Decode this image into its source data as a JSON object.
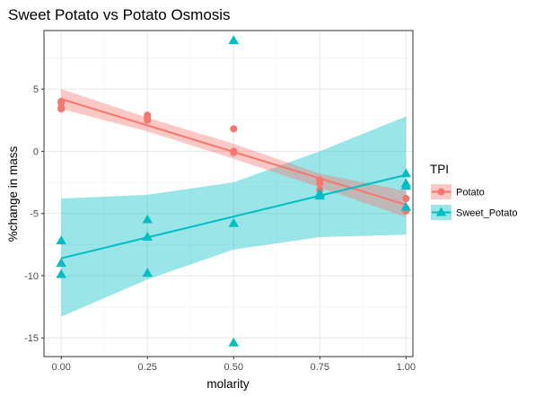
{
  "chart_data": {
    "type": "scatter",
    "title": "Sweet Potato vs Potato Osmosis",
    "xlabel": "molarity",
    "ylabel": "%change in mass",
    "xlim": [
      -0.05,
      1.02
    ],
    "ylim": [
      -16.5,
      9.7
    ],
    "x_ticks": [
      0,
      0.25,
      0.5,
      0.75,
      1
    ],
    "x_tick_labels": [
      "0.00",
      "0.25",
      "0.50",
      "0.75",
      "1.00"
    ],
    "y_ticks": [
      -15,
      -10,
      -5,
      0,
      5
    ],
    "y_tick_labels": [
      "-15",
      "-10",
      "-5",
      "0",
      "5"
    ],
    "grid": true,
    "legend": {
      "title": "TPI",
      "placement": "right"
    },
    "series": [
      {
        "name": "Potato",
        "color": "#F8766D",
        "marker": "circle",
        "points": [
          [
            0,
            3.4
          ],
          [
            0,
            3.5
          ],
          [
            0,
            3.9
          ],
          [
            0,
            4.0
          ],
          [
            0.25,
            2.5
          ],
          [
            0.25,
            2.7
          ],
          [
            0.25,
            2.9
          ],
          [
            0.5,
            1.8
          ],
          [
            0.5,
            -0.1
          ],
          [
            0.5,
            0.0
          ],
          [
            0.75,
            -2.3
          ],
          [
            0.75,
            -2.6
          ],
          [
            0.75,
            -3.1
          ],
          [
            1,
            -3.8
          ],
          [
            1,
            -4.6
          ],
          [
            1,
            -4.7
          ],
          [
            1,
            -4.8
          ]
        ],
        "fit": [
          [
            0,
            4.2
          ],
          [
            1,
            -4.3
          ]
        ],
        "ci_upper": [
          [
            0,
            5.0
          ],
          [
            0.25,
            2.7
          ],
          [
            0.5,
            0.6
          ],
          [
            0.75,
            -1.8
          ],
          [
            1,
            -3.2
          ]
        ],
        "ci_lower": [
          [
            0,
            3.4
          ],
          [
            0.25,
            1.6
          ],
          [
            0.5,
            -0.6
          ],
          [
            0.75,
            -2.9
          ],
          [
            1,
            -5.3
          ]
        ]
      },
      {
        "name": "Sweet_Potato",
        "color": "#00BFC4",
        "marker": "triangle",
        "points": [
          [
            0,
            -7.2
          ],
          [
            0,
            -9.0
          ],
          [
            0,
            -9.9
          ],
          [
            0.25,
            -5.5
          ],
          [
            0.25,
            -6.9
          ],
          [
            0.25,
            -9.8
          ],
          [
            0.5,
            8.9
          ],
          [
            0.5,
            -5.8
          ],
          [
            0.5,
            -15.4
          ],
          [
            0.75,
            -3.4
          ],
          [
            0.75,
            -3.6
          ],
          [
            1,
            -1.8
          ],
          [
            1,
            -2.6
          ],
          [
            1,
            -2.8
          ],
          [
            1,
            -4.5
          ]
        ],
        "fit": [
          [
            0,
            -8.6
          ],
          [
            1,
            -1.9
          ]
        ],
        "ci_upper": [
          [
            0,
            -3.8
          ],
          [
            0.25,
            -3.5
          ],
          [
            0.5,
            -2.5
          ],
          [
            0.75,
            0.0
          ],
          [
            1,
            2.8
          ]
        ],
        "ci_lower": [
          [
            0,
            -13.3
          ],
          [
            0.25,
            -10.3
          ],
          [
            0.5,
            -7.9
          ],
          [
            0.75,
            -6.9
          ],
          [
            1,
            -6.7
          ]
        ]
      }
    ]
  }
}
